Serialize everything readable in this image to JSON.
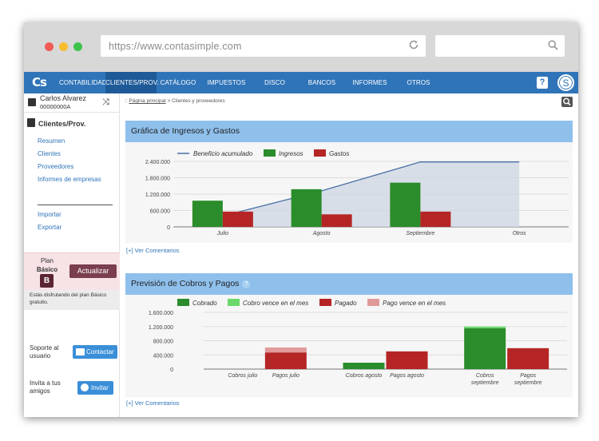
{
  "browser": {
    "url": "https://www.contasimple.com",
    "colors": {
      "close": "#f05b53",
      "minimize": "#f5bd2f",
      "maximize": "#3fc24c"
    }
  },
  "nav": {
    "logo": "Cs",
    "items": [
      "CONTABILIDAD",
      "CLIENTES/PROV.",
      "CATÁLOGO",
      "IMPUESTOS",
      "DISCO VIRTUAL",
      "BANCOS",
      "INFORMES",
      "OTROS"
    ],
    "active_index": 1,
    "help_label": "?",
    "avatar_initial": "S"
  },
  "sidebar": {
    "user_name": "Carlos Alvarez",
    "user_id": "00000000A",
    "section_title": "Clientes/Prov.",
    "links": [
      "Resumen",
      "Clientes",
      "Proveedores",
      "Informes de empresas"
    ],
    "links2": [
      "Importar",
      "Exportar"
    ],
    "plan_label": "Plan",
    "plan_name": "Básico",
    "plan_badge": "B",
    "upgrade_label": "Actualizar",
    "plan_info": "Estás disfrutando del plan Básico gratuito.",
    "support_label_1": "Soporte al",
    "support_label_2": "usuario",
    "contact_label": "Contactar",
    "invite_label_1": "Invita a tus",
    "invite_label_2": "amigos",
    "invite_button": "Invitar"
  },
  "breadcrumb": {
    "home": "Página principal",
    "sep": " > ",
    "current": "Clientes y proveedores"
  },
  "panels": {
    "income": {
      "title": "Gráfica de Ingresos y Gastos",
      "comments": "[+] Ver Comentarios"
    },
    "forecast": {
      "title": "Previsión de Cobros y Pagos",
      "help": "?",
      "comments": "[+] Ver Comentarios"
    }
  },
  "chart_data": [
    {
      "type": "bar",
      "title": "Gráfica de Ingresos y Gastos",
      "categories": [
        "Julio",
        "Agosto",
        "Septiembre",
        "Otros"
      ],
      "series": [
        {
          "name": "Ingresos",
          "kind": "bar",
          "color": "#2a8c2a",
          "values": [
            960000,
            1380000,
            1620000,
            0
          ]
        },
        {
          "name": "Gastos",
          "kind": "bar",
          "color": "#b52525",
          "values": [
            560000,
            460000,
            560000,
            0
          ]
        },
        {
          "name": "Beneficio acumulado",
          "kind": "area",
          "color": "#4a6fa5",
          "values": [
            400000,
            1320000,
            2380000,
            2380000
          ]
        }
      ],
      "yticks": [
        "0",
        "600.000",
        "1.200.000",
        "1.800.000",
        "2.400.000"
      ],
      "ylim": [
        0,
        2400000
      ],
      "legend": "top"
    },
    {
      "type": "bar",
      "title": "Previsión de Cobros y Pagos",
      "groups": [
        {
          "label": "Cobros julio",
          "kind": "cobros"
        },
        {
          "label": "Pagos julio",
          "kind": "pagos"
        },
        {
          "label": "Cobros agosto",
          "kind": "cobros"
        },
        {
          "label": "Pagos agosto",
          "kind": "pagos"
        },
        {
          "label": "Cobros septiembre",
          "kind": "cobros"
        },
        {
          "label": "Pagos septiembre",
          "kind": "pagos"
        }
      ],
      "series": [
        {
          "name": "Cobrado",
          "color": "#2a8c2a",
          "values": [
            0,
            0,
            180000,
            0,
            1150000,
            0
          ]
        },
        {
          "name": "Cobro vence en el mes",
          "color": "#6ad86a",
          "values": [
            0,
            0,
            0,
            0,
            50000,
            0
          ]
        },
        {
          "name": "Pagado",
          "color": "#b52525",
          "values": [
            0,
            470000,
            0,
            500000,
            0,
            590000
          ]
        },
        {
          "name": "Pago vence en el mes",
          "color": "#e09a9a",
          "values": [
            0,
            140000,
            0,
            0,
            0,
            0
          ]
        }
      ],
      "yticks": [
        "0",
        "400.000",
        "800.000",
        "1.200.000",
        "1.600.000"
      ],
      "ylim": [
        0,
        1600000
      ],
      "legend": "top"
    }
  ]
}
